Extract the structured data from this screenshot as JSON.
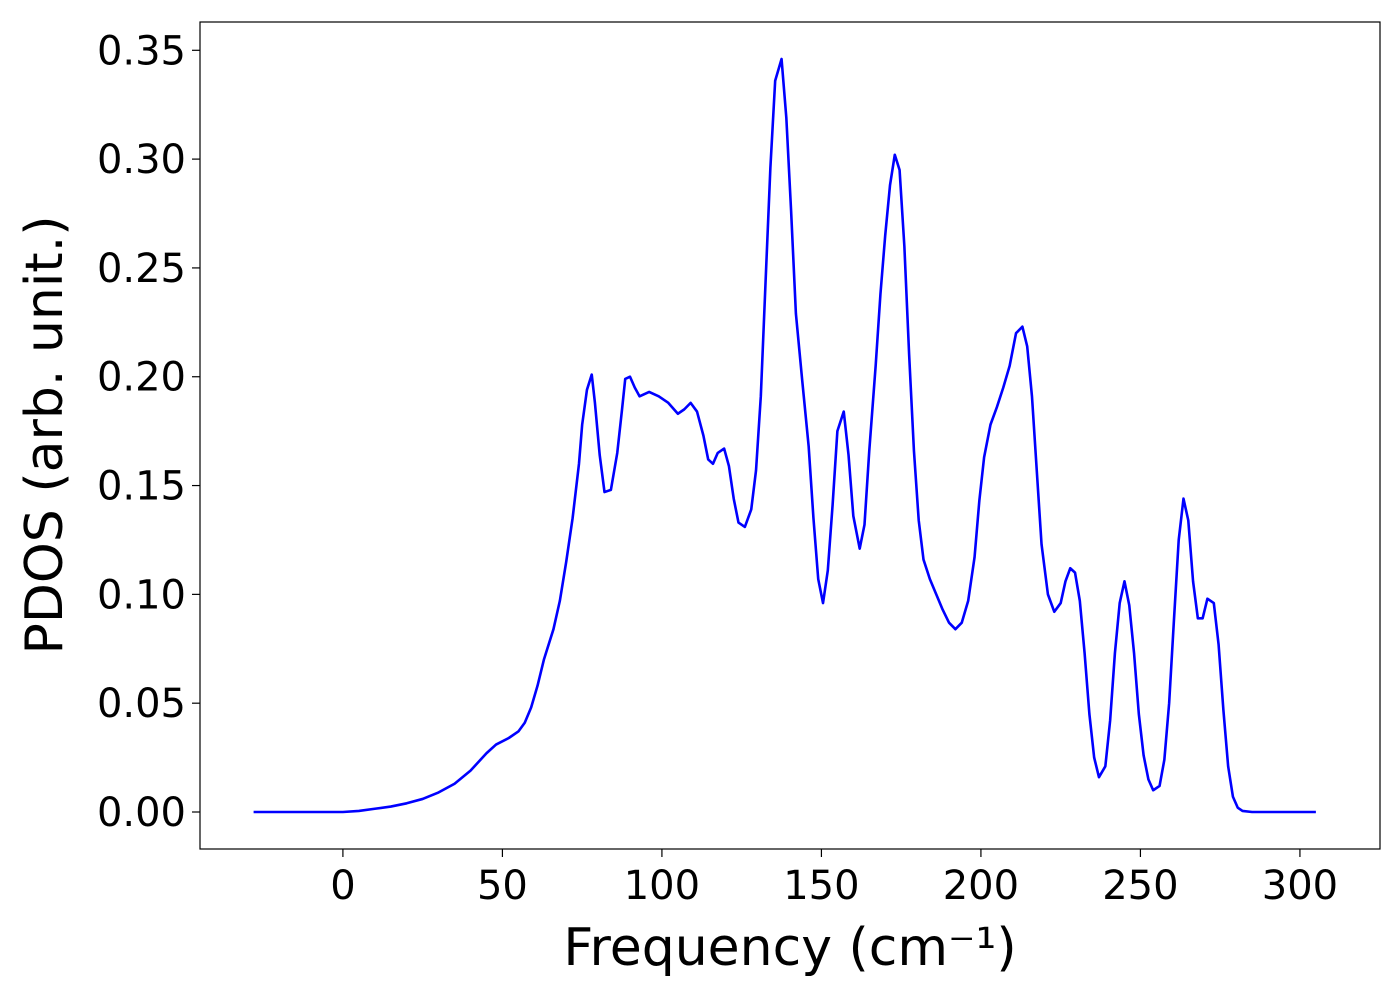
{
  "chart_data": {
    "type": "line",
    "xlabel": "Frequency (cm⁻¹)",
    "ylabel": "PDOS (arb. unit.)",
    "color": "#0000ff",
    "x": [
      -28,
      0,
      5,
      10,
      15,
      20,
      25,
      30,
      35,
      40,
      45,
      48,
      52,
      55,
      57,
      59,
      61,
      63,
      66,
      68,
      70,
      72,
      74,
      75,
      76.5,
      78,
      79,
      80.5,
      82,
      84,
      86,
      87.5,
      88.5,
      90,
      91.5,
      93,
      96,
      99,
      102,
      105,
      107,
      109,
      111,
      113,
      114.5,
      116,
      117.5,
      119.5,
      121,
      122.5,
      124,
      126,
      128,
      129.5,
      131,
      132.5,
      134,
      135.5,
      137.5,
      139,
      140.5,
      142,
      144,
      146,
      147.5,
      149,
      150.5,
      152,
      153.5,
      155,
      157,
      158.5,
      160,
      162,
      163.5,
      165,
      167,
      168.5,
      170,
      171.5,
      173,
      174.5,
      176,
      177.5,
      179,
      180.5,
      182,
      184,
      186,
      188,
      190,
      192,
      194,
      196,
      198,
      199.5,
      201,
      203,
      205,
      207,
      209,
      211,
      213,
      214.5,
      216,
      217.5,
      219,
      221,
      223,
      225,
      226.5,
      228,
      229.5,
      231,
      232.5,
      234,
      235.5,
      237,
      239,
      240.5,
      242,
      243.5,
      245,
      246.5,
      248,
      249.5,
      251,
      252.5,
      254,
      256,
      257.5,
      259,
      260.5,
      262,
      263.5,
      265,
      266.5,
      268,
      269.5,
      271,
      273,
      274.5,
      276,
      277.5,
      279,
      280.5,
      282,
      285,
      305
    ],
    "values": [
      0,
      0,
      0.0005,
      0.0015,
      0.0025,
      0.004,
      0.006,
      0.009,
      0.013,
      0.019,
      0.027,
      0.031,
      0.034,
      0.037,
      0.041,
      0.048,
      0.058,
      0.07,
      0.084,
      0.097,
      0.115,
      0.135,
      0.16,
      0.178,
      0.194,
      0.201,
      0.188,
      0.164,
      0.147,
      0.148,
      0.165,
      0.185,
      0.199,
      0.2,
      0.195,
      0.191,
      0.193,
      0.191,
      0.188,
      0.183,
      0.185,
      0.188,
      0.184,
      0.173,
      0.162,
      0.16,
      0.165,
      0.167,
      0.159,
      0.144,
      0.133,
      0.131,
      0.139,
      0.157,
      0.191,
      0.244,
      0.296,
      0.336,
      0.346,
      0.319,
      0.276,
      0.229,
      0.198,
      0.168,
      0.135,
      0.107,
      0.096,
      0.111,
      0.141,
      0.175,
      0.184,
      0.164,
      0.136,
      0.121,
      0.132,
      0.166,
      0.205,
      0.238,
      0.265,
      0.288,
      0.302,
      0.295,
      0.26,
      0.21,
      0.166,
      0.134,
      0.116,
      0.107,
      0.1,
      0.093,
      0.087,
      0.084,
      0.087,
      0.097,
      0.117,
      0.143,
      0.163,
      0.178,
      0.186,
      0.195,
      0.205,
      0.22,
      0.223,
      0.214,
      0.191,
      0.157,
      0.123,
      0.1,
      0.092,
      0.096,
      0.106,
      0.112,
      0.11,
      0.097,
      0.073,
      0.045,
      0.025,
      0.016,
      0.021,
      0.042,
      0.073,
      0.096,
      0.106,
      0.095,
      0.073,
      0.045,
      0.026,
      0.015,
      0.01,
      0.012,
      0.024,
      0.05,
      0.088,
      0.125,
      0.144,
      0.134,
      0.106,
      0.089,
      0.089,
      0.098,
      0.096,
      0.077,
      0.047,
      0.021,
      0.007,
      0.002,
      0.0005,
      0,
      0
    ],
    "xlim": [
      -44.8,
      325.1
    ],
    "xticks": [
      0,
      50,
      100,
      150,
      200,
      250,
      300
    ],
    "ylim": [
      -0.017,
      0.363
    ],
    "yticks": [
      {
        "value": 0,
        "label": "0.00"
      },
      0.05,
      {
        "value": 0.1,
        "label": "0.10"
      },
      0.15,
      {
        "value": 0.2,
        "label": "0.20"
      },
      0.25,
      {
        "value": 0.3,
        "label": "0.30"
      },
      0.35
    ]
  }
}
